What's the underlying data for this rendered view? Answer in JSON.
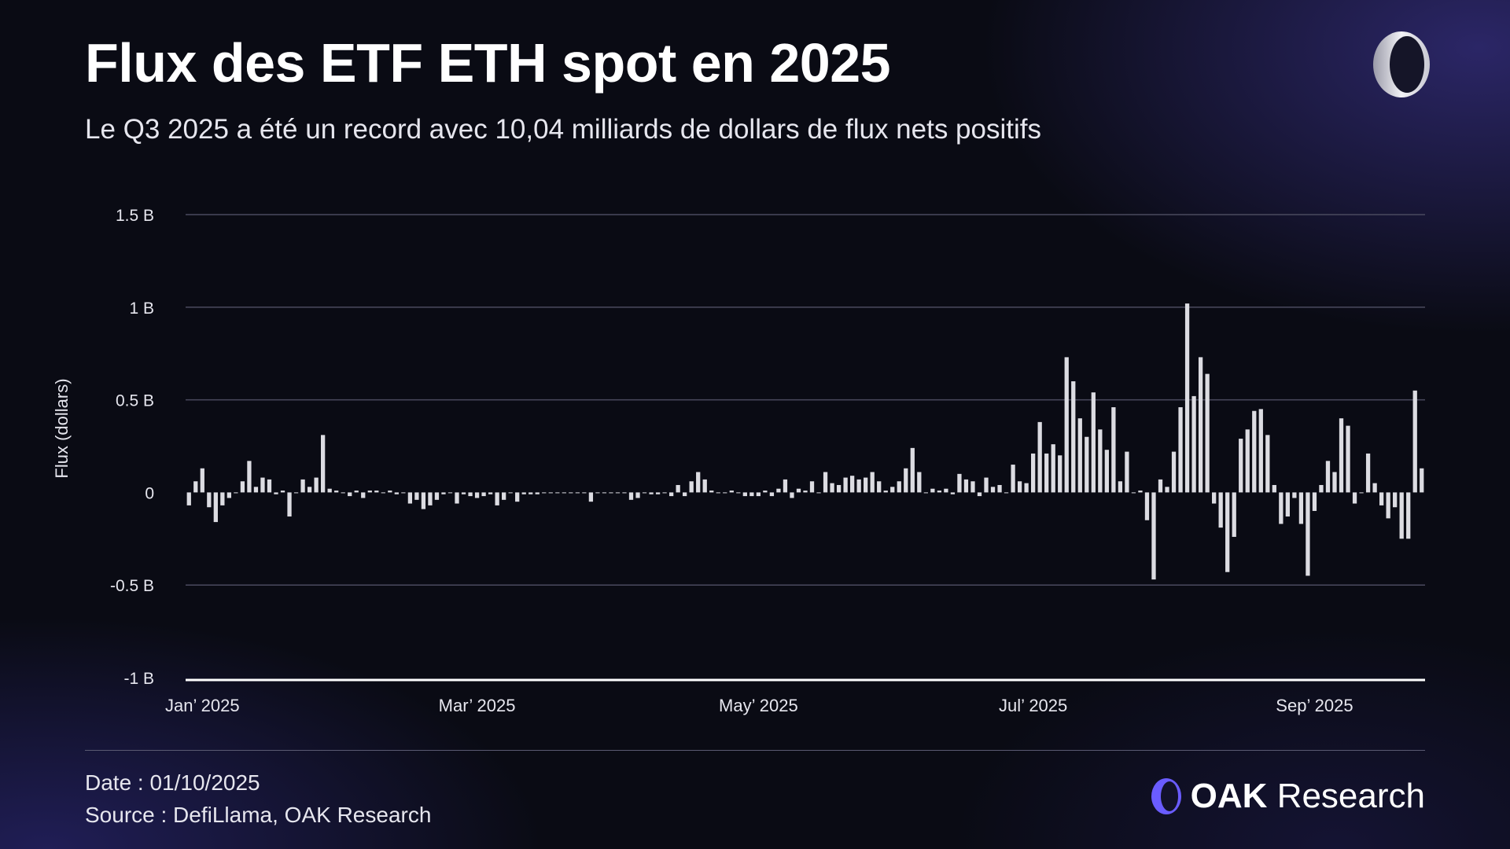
{
  "header": {
    "title": "Flux des ETF ETH spot en 2025",
    "subtitle": "Le Q3 2025 a été un record avec 10,04 milliards de dollars de flux nets positifs"
  },
  "footer": {
    "date": "Date : 01/10/2025",
    "source": "Source : DefiLlama, OAK Research",
    "brand_bold": "OAK",
    "brand_light": "Research"
  },
  "colors": {
    "bar": "#dcdce2",
    "grid": "#4a4a5e",
    "axis": "#ffffff",
    "accent": "#6a5cff"
  },
  "chart_data": {
    "type": "bar",
    "title": "Flux des ETF ETH spot en 2025",
    "xlabel": "",
    "ylabel": "Flux (dollars)",
    "ylim": [
      -1,
      1.5
    ],
    "unit": "B USD",
    "y_ticks": [
      {
        "value": 1.5,
        "label": "1.5 B"
      },
      {
        "value": 1,
        "label": "1 B"
      },
      {
        "value": 0.5,
        "label": "0.5 B"
      },
      {
        "value": 0,
        "label": "0"
      },
      {
        "value": -0.5,
        "label": "-0.5 B"
      },
      {
        "value": -1,
        "label": "-1 B"
      }
    ],
    "x_ticks": [
      {
        "index": 2,
        "label": "Jan’ 2025"
      },
      {
        "index": 43,
        "label": "Mar’ 2025"
      },
      {
        "index": 85,
        "label": "May’ 2025"
      },
      {
        "index": 126,
        "label": "Jul’ 2025"
      },
      {
        "index": 168,
        "label": "Sep’ 2025"
      }
    ],
    "grid": true,
    "values": [
      -0.07,
      0.06,
      0.13,
      -0.08,
      -0.16,
      -0.07,
      -0.03,
      0,
      0.06,
      0.17,
      0.03,
      0.08,
      0.07,
      -0.01,
      0.01,
      -0.13,
      0,
      0.07,
      0.03,
      0.08,
      0.31,
      0.02,
      0.01,
      0,
      -0.02,
      0.01,
      -0.03,
      0.01,
      0.01,
      0,
      0.01,
      -0.01,
      0,
      -0.06,
      -0.04,
      -0.09,
      -0.07,
      -0.04,
      -0.01,
      0,
      -0.06,
      -0.01,
      -0.02,
      -0.03,
      -0.02,
      -0.01,
      -0.07,
      -0.04,
      0,
      -0.05,
      -0.01,
      -0.01,
      -0.01,
      0,
      0,
      0,
      0,
      0,
      0,
      0,
      -0.05,
      0,
      0,
      0,
      0,
      0,
      -0.04,
      -0.03,
      0,
      -0.01,
      -0.01,
      0,
      -0.02,
      0.04,
      -0.02,
      0.06,
      0.11,
      0.07,
      0.01,
      0,
      0,
      0.01,
      0,
      -0.02,
      -0.02,
      -0.02,
      0.01,
      -0.02,
      0.02,
      0.07,
      -0.03,
      0.02,
      0.01,
      0.06,
      0,
      0.11,
      0.05,
      0.04,
      0.08,
      0.09,
      0.07,
      0.08,
      0.11,
      0.06,
      0.01,
      0.03,
      0.06,
      0.13,
      0.24,
      0.11,
      0,
      0.02,
      0.01,
      0.02,
      -0.01,
      0.1,
      0.07,
      0.06,
      -0.02,
      0.08,
      0.03,
      0.04,
      0,
      0.15,
      0.06,
      0.05,
      0.21,
      0.38,
      0.21,
      0.26,
      0.2,
      0.73,
      0.6,
      0.4,
      0.3,
      0.54,
      0.34,
      0.23,
      0.46,
      0.06,
      0.22,
      0,
      0.01,
      -0.15,
      -0.47,
      0.07,
      0.03,
      0.22,
      0.46,
      1.02,
      0.52,
      0.73,
      0.64,
      -0.06,
      -0.19,
      -0.43,
      -0.24,
      0.29,
      0.34,
      0.44,
      0.45,
      0.31,
      0.04,
      -0.17,
      -0.13,
      -0.03,
      -0.17,
      -0.45,
      -0.1,
      0.04,
      0.17,
      0.11,
      0.4,
      0.36,
      -0.06,
      0,
      0.21,
      0.05,
      -0.07,
      -0.14,
      -0.08,
      -0.25,
      -0.25,
      0.55,
      0.13
    ]
  }
}
